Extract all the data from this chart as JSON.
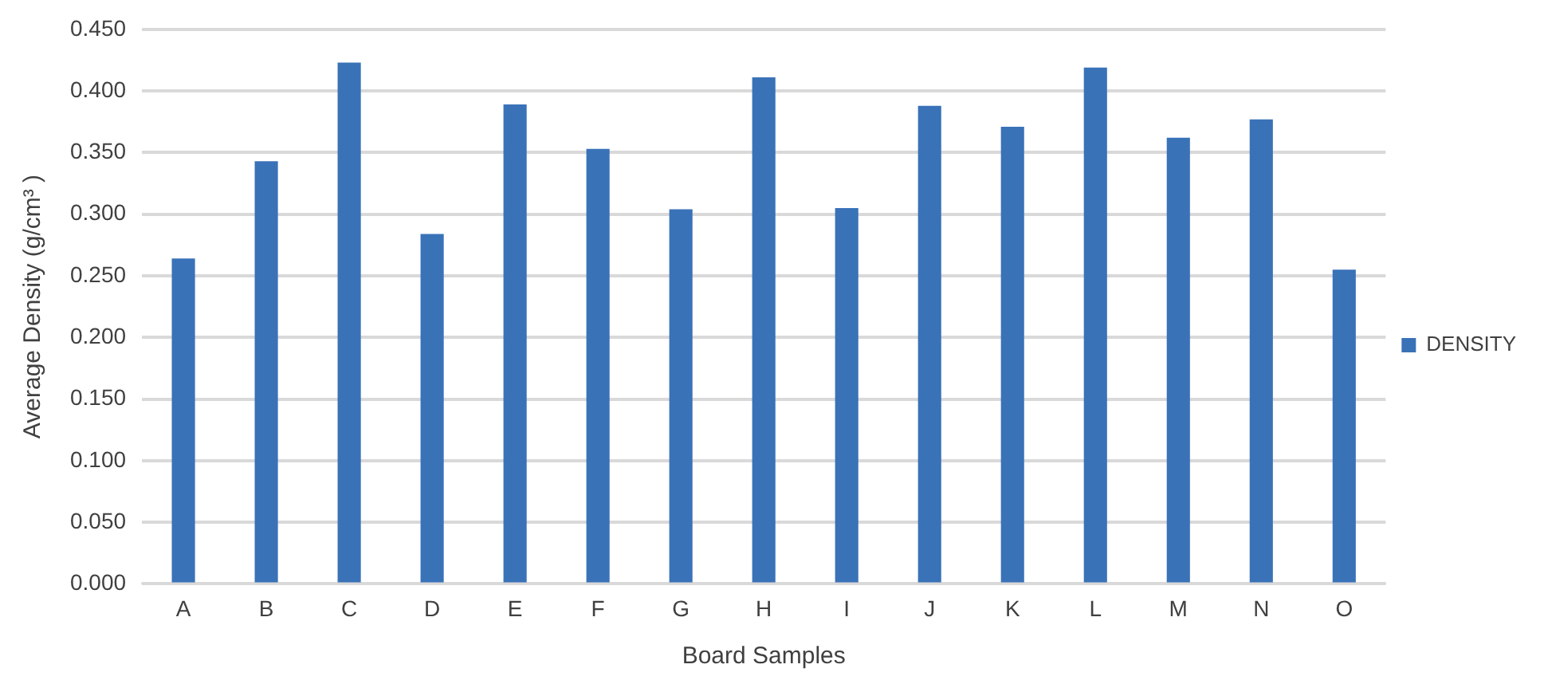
{
  "chart_data": {
    "type": "bar",
    "xlabel": "Board Samples",
    "ylabel": "Average Density (g/cm³ )",
    "categories": [
      "A",
      "B",
      "C",
      "D",
      "E",
      "F",
      "G",
      "H",
      "I",
      "J",
      "K",
      "L",
      "M",
      "N",
      "O"
    ],
    "series": [
      {
        "name": "DENSITY",
        "color": "#3a72b8",
        "values": [
          0.264,
          0.343,
          0.423,
          0.284,
          0.389,
          0.353,
          0.304,
          0.411,
          0.305,
          0.388,
          0.371,
          0.419,
          0.362,
          0.377,
          0.255
        ]
      }
    ],
    "ylim": [
      0,
      0.45
    ],
    "yticks": [
      {
        "value": 0,
        "label": "0.000"
      },
      {
        "value": 0.05,
        "label": "0.050"
      },
      {
        "value": 0.1,
        "label": "0.100"
      },
      {
        "value": 0.15,
        "label": "0.150"
      },
      {
        "value": 0.2,
        "label": "0.200"
      },
      {
        "value": 0.25,
        "label": "0.250"
      },
      {
        "value": 0.3,
        "label": "0.300"
      },
      {
        "value": 0.35,
        "label": "0.350"
      },
      {
        "value": 0.4,
        "label": "0.400"
      },
      {
        "value": 0.45,
        "label": "0.450"
      }
    ],
    "grid": "y",
    "legend": "right"
  }
}
